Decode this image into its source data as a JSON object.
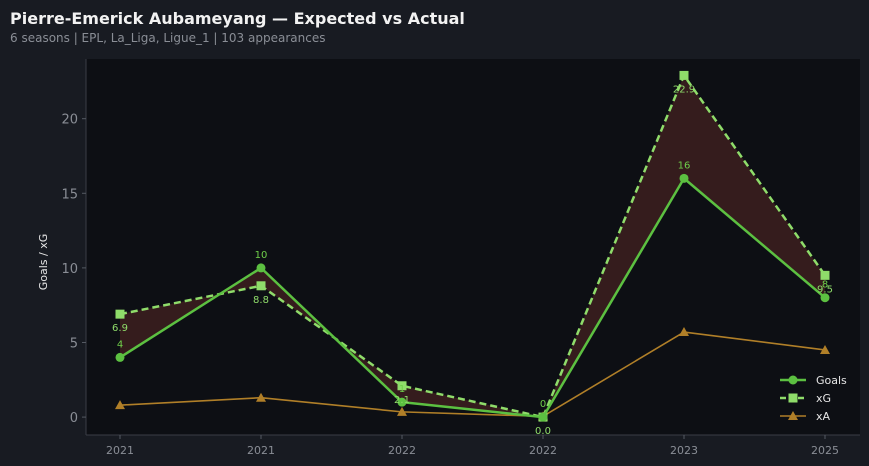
{
  "chart_data": {
    "type": "line",
    "title": "Pierre-Emerick Aubameyang — Expected vs Actual",
    "subtitle": "6 seasons | EPL, La_Liga, Ligue_1 | 103 appearances",
    "xlabel": "",
    "ylabel": "Goals / xG",
    "x": [
      "2021",
      "2021",
      "2022",
      "2022",
      "2023",
      "2025"
    ],
    "ylim": [
      -1.2,
      24
    ],
    "yticks": [
      0,
      5,
      10,
      15,
      20
    ],
    "grid": false,
    "legend_position": "bottom-right",
    "series": [
      {
        "name": "Goals",
        "values": [
          4,
          10,
          1,
          0,
          16,
          8
        ],
        "labels": [
          "4",
          "10",
          "1",
          "0",
          "16",
          "8"
        ],
        "marker": "circle",
        "line": "solid",
        "color": "#5cc041"
      },
      {
        "name": "xG",
        "values": [
          6.9,
          8.8,
          2.1,
          0.0,
          22.9,
          9.5
        ],
        "labels": [
          "6.9",
          "8.8",
          "2.1",
          "0.0",
          "22.9",
          "9.5"
        ],
        "marker": "square",
        "line": "dashed",
        "color": "#8fdc6a"
      },
      {
        "name": "xA",
        "values": [
          0.8,
          1.3,
          0.35,
          0.05,
          5.7,
          4.5
        ],
        "marker": "triangle",
        "line": "solid",
        "color": "#b07f28"
      }
    ],
    "fill_between": {
      "series": [
        "Goals",
        "xG"
      ],
      "color": "#3a1e1e"
    }
  }
}
